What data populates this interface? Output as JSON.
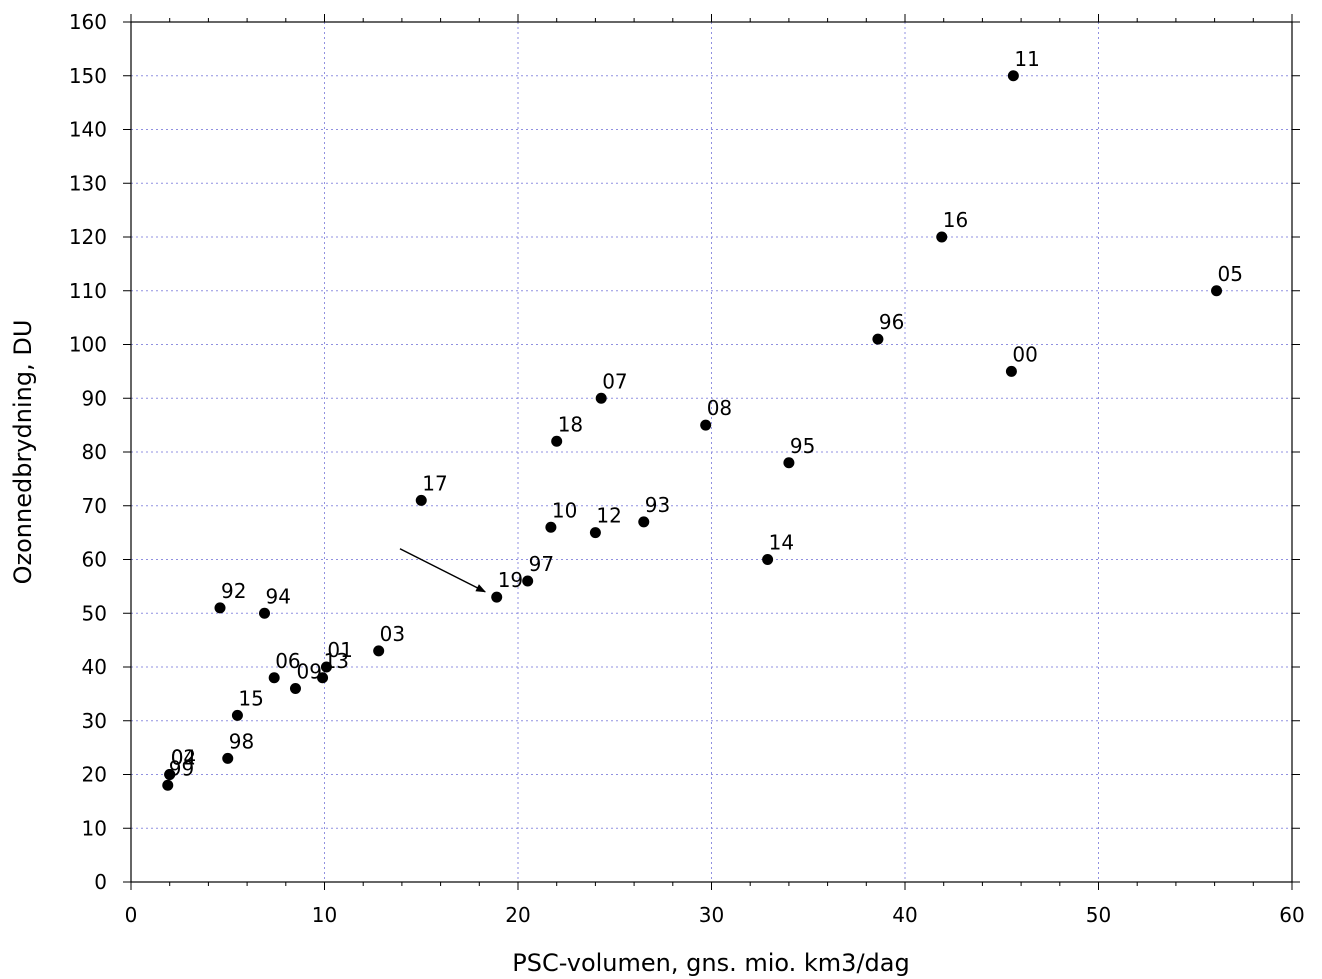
{
  "chart_data": {
    "type": "scatter",
    "title": "",
    "xlabel": "PSC-volumen, gns. mio. km3/dag",
    "ylabel": "Ozonnedbrydning, DU",
    "xlim": [
      0,
      60
    ],
    "ylim": [
      0,
      160
    ],
    "x_ticks": [
      0,
      10,
      20,
      30,
      40,
      50,
      60
    ],
    "y_ticks": [
      0,
      10,
      20,
      30,
      40,
      50,
      60,
      70,
      80,
      90,
      100,
      110,
      120,
      130,
      140,
      150,
      160
    ],
    "grid": true,
    "legend": false,
    "marker_color": "#000000",
    "grid_color": "#9090e0",
    "points": [
      {
        "label": "11",
        "x": 45.6,
        "y": 150
      },
      {
        "label": "16",
        "x": 41.9,
        "y": 120
      },
      {
        "label": "05",
        "x": 56.1,
        "y": 110
      },
      {
        "label": "96",
        "x": 38.6,
        "y": 101
      },
      {
        "label": "00",
        "x": 45.5,
        "y": 95
      },
      {
        "label": "07",
        "x": 24.3,
        "y": 90
      },
      {
        "label": "08",
        "x": 29.7,
        "y": 85
      },
      {
        "label": "18",
        "x": 22.0,
        "y": 82
      },
      {
        "label": "95",
        "x": 34.0,
        "y": 78
      },
      {
        "label": "17",
        "x": 15.0,
        "y": 71
      },
      {
        "label": "10",
        "x": 21.7,
        "y": 66
      },
      {
        "label": "12",
        "x": 24.0,
        "y": 65
      },
      {
        "label": "93",
        "x": 26.5,
        "y": 67
      },
      {
        "label": "14",
        "x": 32.9,
        "y": 60
      },
      {
        "label": "97",
        "x": 20.5,
        "y": 56
      },
      {
        "label": "19",
        "x": 18.9,
        "y": 53
      },
      {
        "label": "92",
        "x": 4.6,
        "y": 51
      },
      {
        "label": "94",
        "x": 6.9,
        "y": 50
      },
      {
        "label": "03",
        "x": 12.8,
        "y": 43
      },
      {
        "label": "01",
        "x": 10.1,
        "y": 40
      },
      {
        "label": "13",
        "x": 9.9,
        "y": 38
      },
      {
        "label": "06",
        "x": 7.4,
        "y": 38
      },
      {
        "label": "09",
        "x": 8.5,
        "y": 36
      },
      {
        "label": "15",
        "x": 5.5,
        "y": 31
      },
      {
        "label": "98",
        "x": 5.0,
        "y": 23
      },
      {
        "label": "02",
        "x": 2.0,
        "y": 20
      },
      {
        "label": "04",
        "x": 2.0,
        "y": 20
      },
      {
        "label": "99",
        "x": 1.9,
        "y": 18
      }
    ],
    "annotations": [
      {
        "type": "arrow",
        "from": [
          13.9,
          62
        ],
        "to": [
          18.3,
          54
        ]
      }
    ]
  }
}
